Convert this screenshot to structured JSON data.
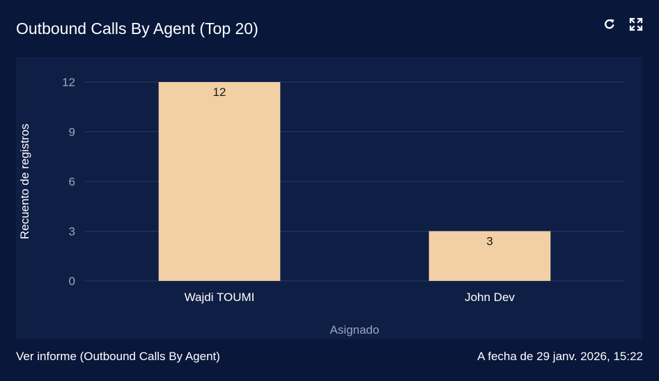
{
  "widget": {
    "title": "Outbound Calls By Agent (Top 20)",
    "refresh_icon": "refresh-icon",
    "expand_icon": "expand-icon"
  },
  "footer": {
    "report_link": "Ver informe (Outbound Calls By Agent)",
    "timestamp": "A fecha de 29 janv. 2026, 15:22"
  },
  "colors": {
    "background": "#08173a",
    "plot_background": "#0f1e44",
    "bar": "#f3cfa5",
    "gridline": "#2a3a64",
    "tick_label": "#9aa6c2",
    "text": "#ffffff"
  },
  "chart_data": {
    "type": "bar",
    "categories": [
      "Wajdi TOUMI",
      "John Dev"
    ],
    "values": [
      12,
      3
    ],
    "data_labels": [
      "12",
      "3"
    ],
    "xlabel": "Asignado",
    "ylabel": "Recuento de registros",
    "ylim": [
      0,
      12
    ],
    "yticks": [
      0,
      3,
      6,
      9,
      12
    ],
    "grid": true,
    "legend": "none"
  }
}
